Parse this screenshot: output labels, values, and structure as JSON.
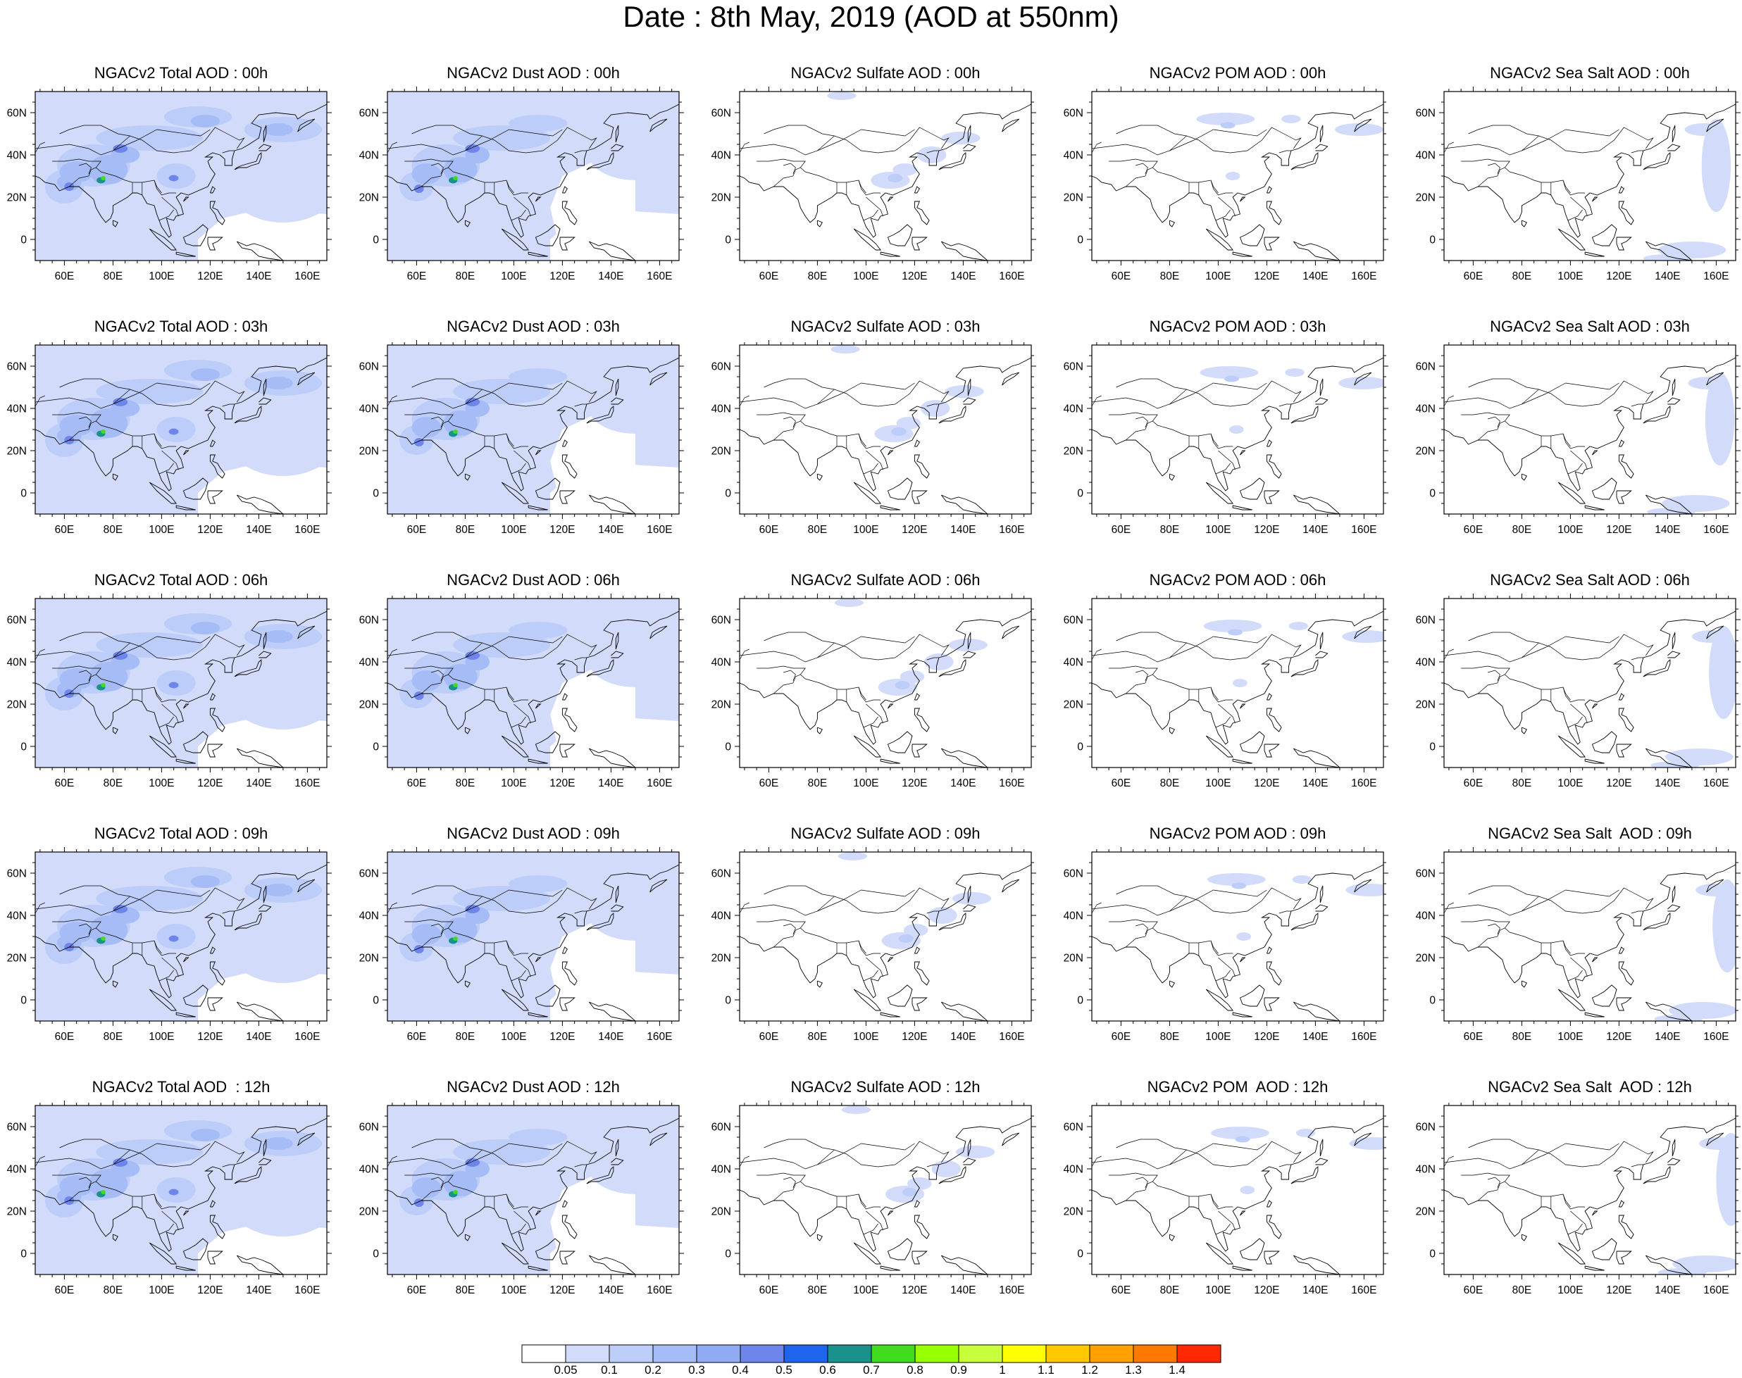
{
  "title": "Date : 8th May, 2019 (AOD at 550nm)",
  "panels": {
    "rows": [
      {
        "titles": [
          "NGACv2 Total AOD : 00h",
          "NGACv2 Dust AOD : 00h",
          "NGACv2 Sulfate AOD : 00h",
          "NGACv2 POM AOD : 00h",
          "NGACv2 Sea Salt AOD : 00h"
        ]
      },
      {
        "titles": [
          "NGACv2 Total AOD : 03h",
          "NGACv2 Dust AOD : 03h",
          "NGACv2 Sulfate AOD : 03h",
          "NGACv2 POM AOD : 03h",
          "NGACv2 Sea Salt AOD : 03h"
        ]
      },
      {
        "titles": [
          "NGACv2 Total AOD : 06h",
          "NGACv2 Dust AOD : 06h",
          "NGACv2 Sulfate AOD : 06h",
          "NGACv2 POM AOD : 06h",
          "NGACv2 Sea Salt AOD : 06h"
        ]
      },
      {
        "titles": [
          "NGACv2 Total AOD : 09h",
          "NGACv2 Dust AOD : 09h",
          "NGACv2 Sulfate AOD : 09h",
          "NGACv2 POM AOD : 09h",
          "NGACv2 Sea Salt  AOD : 09h"
        ]
      },
      {
        "titles": [
          "NGACv2 Total AOD  : 12h",
          "NGACv2 Dust AOD : 12h",
          "NGACv2 Sulfate AOD : 12h",
          "NGACv2 POM  AOD : 12h",
          "NGACv2 Sea Salt  AOD : 12h"
        ]
      }
    ],
    "column_types": [
      "total",
      "dust",
      "sulfate",
      "pom",
      "seasalt"
    ]
  },
  "axes": {
    "lon_labels": [
      "60E",
      "80E",
      "100E",
      "120E",
      "140E",
      "160E"
    ],
    "lon_values": [
      60,
      80,
      100,
      120,
      140,
      160
    ],
    "lat_labels": [
      "60N",
      "40N",
      "20N",
      "0"
    ],
    "lat_values": [
      60,
      40,
      20,
      0
    ],
    "lon_range": [
      48,
      168
    ],
    "lat_range": [
      -10,
      70
    ]
  },
  "colorbar": {
    "labels": [
      "0.05",
      "0.1",
      "0.2",
      "0.3",
      "0.4",
      "0.5",
      "0.6",
      "0.7",
      "0.8",
      "0.9",
      "1",
      "1.1",
      "1.2",
      "1.3",
      "1.4"
    ],
    "colors": [
      "#ffffff",
      "#d2dcfa",
      "#bccdf9",
      "#a6bcf6",
      "#90aaf3",
      "#6e86ec",
      "#1e64ee",
      "#19918c",
      "#41dc1e",
      "#96ff00",
      "#c8ff3c",
      "#ffff00",
      "#ffc800",
      "#ffa000",
      "#ff7800",
      "#ff2800"
    ]
  }
}
